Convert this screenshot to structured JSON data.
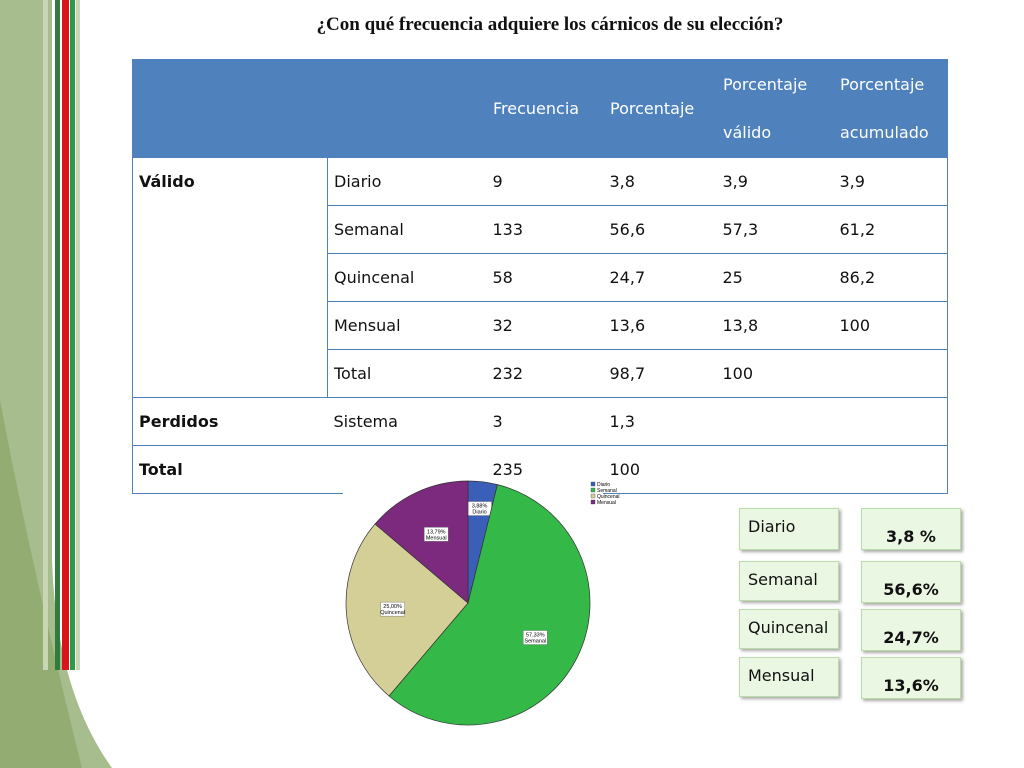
{
  "title": "¿Con qué frecuencia adquiere los cárnicos de su elección?",
  "table": {
    "headers": [
      "Frecuencia",
      "Porcentaje",
      "Porcentaje válido",
      "Porcentaje acumulado"
    ],
    "header_lines": {
      "pv1": "Porcentaje",
      "pv2": "válido",
      "pa1": "Porcentaje",
      "pa2": "acumulado"
    },
    "groups": {
      "valido": "Válido",
      "perdidos": "Perdidos",
      "total": "Total"
    },
    "rows": [
      {
        "label": "Diario",
        "frecuencia": "9",
        "porcentaje": "3,8",
        "valido": "3,9",
        "acumulado": "3,9"
      },
      {
        "label": "Semanal",
        "frecuencia": "133",
        "porcentaje": "56,6",
        "valido": "57,3",
        "acumulado": "61,2"
      },
      {
        "label": "Quincenal",
        "frecuencia": "58",
        "porcentaje": "24,7",
        "valido": "25",
        "acumulado": "86,2"
      },
      {
        "label": "Mensual",
        "frecuencia": "32",
        "porcentaje": "13,6",
        "valido": "13,8",
        "acumulado": "100"
      },
      {
        "label": "Total",
        "frecuencia": "232",
        "porcentaje": "98,7",
        "valido": "100",
        "acumulado": ""
      },
      {
        "label": "Sistema",
        "frecuencia": "3",
        "porcentaje": "1,3",
        "valido": "",
        "acumulado": ""
      },
      {
        "label": "",
        "frecuencia": "235",
        "porcentaje": "100",
        "valido": "",
        "acumulado": ""
      }
    ]
  },
  "chart_data": {
    "type": "pie",
    "title": "",
    "categories": [
      "Diario",
      "Semanal",
      "Quincenal",
      "Mensual"
    ],
    "values": [
      3.88,
      57.33,
      25.0,
      13.79
    ],
    "slice_labels": [
      {
        "pct": "3,88%",
        "name": "Diario"
      },
      {
        "pct": "57,33%",
        "name": "Semanal"
      },
      {
        "pct": "25,00%",
        "name": "Quincenal"
      },
      {
        "pct": "13,79%",
        "name": "Mensual"
      }
    ],
    "colors": [
      "#3b5eb8",
      "#34b848",
      "#d4cf97",
      "#7b2a7e"
    ],
    "legend": [
      "Diario",
      "Semanal",
      "Quincenal",
      "Mensual"
    ],
    "legend_placement": "top-right"
  },
  "summary": [
    {
      "label": "Diario",
      "value": "3,8 %"
    },
    {
      "label": "Semanal",
      "value": "56,6%"
    },
    {
      "label": "Quincenal",
      "value": "24,7%"
    },
    {
      "label": "Mensual",
      "value": "13,6%"
    }
  ],
  "colors": {
    "header_blue": "#4f81bd",
    "box_green": "#eaf7e3",
    "stripe_red": "#d9141a",
    "stripe_green": "#1e8a3c",
    "bg_sage": "#9bb37a"
  }
}
